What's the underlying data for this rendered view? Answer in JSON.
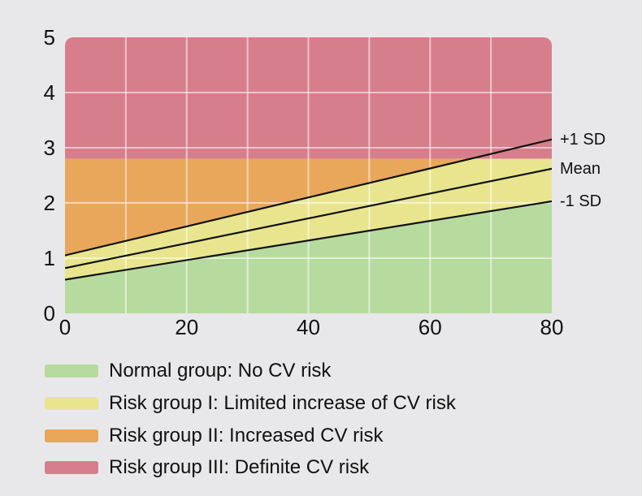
{
  "page": {
    "background_color": "#e8e8ea",
    "text_color": "#111111"
  },
  "chart_data": {
    "type": "area",
    "title": "",
    "xlabel": "",
    "ylabel": "",
    "x_range": [
      0,
      80
    ],
    "y_range": [
      0,
      5
    ],
    "x_ticks": [
      "0",
      "20",
      "40",
      "60",
      "80"
    ],
    "x_tick_values": [
      0,
      20,
      40,
      60,
      80
    ],
    "y_ticks": [
      "0",
      "1",
      "2",
      "3",
      "4",
      "5"
    ],
    "y_tick_values": [
      0,
      1,
      2,
      3,
      4,
      5
    ],
    "grid": {
      "x_step": 10,
      "y_step": 1,
      "color": "rgba(255,255,255,0.55)",
      "width": 2
    },
    "risk_threshold_y": 2.8,
    "reference_lines": [
      {
        "name": "plus-1-sd",
        "label": "+1 SD",
        "x": [
          0,
          80
        ],
        "y": [
          1.05,
          3.15
        ],
        "color": "#111111"
      },
      {
        "name": "mean",
        "label": "Mean",
        "x": [
          0,
          80
        ],
        "y": [
          0.82,
          2.62
        ],
        "color": "#111111"
      },
      {
        "name": "minus-1-sd",
        "label": "-1 SD",
        "x": [
          0,
          80
        ],
        "y": [
          0.61,
          2.03
        ],
        "color": "#111111"
      }
    ],
    "zones": [
      {
        "name": "normal",
        "color": "#b7db9e"
      },
      {
        "name": "risk-1",
        "color": "#e9e58e"
      },
      {
        "name": "risk-2",
        "color": "#e9a75b"
      },
      {
        "name": "risk-3",
        "color": "#d77e8c"
      }
    ],
    "legend": {
      "position": "below-chart",
      "entries": [
        {
          "swatch_color": "#b7db9e",
          "label": "Normal group: No CV risk"
        },
        {
          "swatch_color": "#e9e58e",
          "label": "Risk group I: Limited increase of CV risk"
        },
        {
          "swatch_color": "#e9a75b",
          "label": "Risk group II: Increased CV risk"
        },
        {
          "swatch_color": "#d77e8c",
          "label": "Risk group III: Definite CV risk"
        }
      ]
    }
  }
}
